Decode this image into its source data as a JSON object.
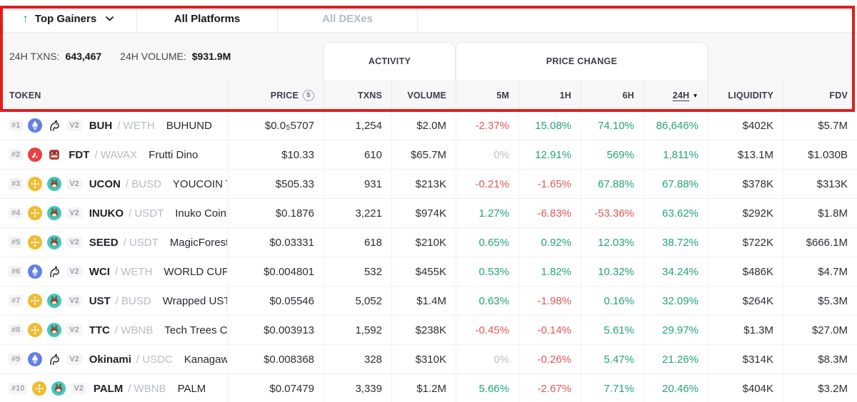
{
  "colors": {
    "annotation_red": "#e01d1d",
    "positive_green": "#25a573",
    "negative_red": "#e45757",
    "neutral_gray": "#b9bfc6",
    "ethereum_blue": "#627eea",
    "bnb_yellow": "#f3ba2f",
    "avalanche_red": "#e84142"
  },
  "filter_bar": {
    "tabs": [
      {
        "label": "Top Gainers",
        "icon": "arrow-up-icon",
        "has_caret": true
      },
      {
        "label": "All Platforms"
      },
      {
        "label": "All DEXes"
      }
    ]
  },
  "stats_bar": {
    "txns_label": "24H TXNS:",
    "txns_value": "643,467",
    "volume_label": "24H VOLUME:",
    "volume_value": "$931.9M",
    "group_headers": {
      "activity": "ACTIVITY",
      "price_change": "PRICE CHANGE"
    }
  },
  "table": {
    "headers": {
      "token": "TOKEN",
      "price": "PRICE",
      "txns": "TXNS",
      "volume": "VOLUME",
      "m5": "5M",
      "h1": "1H",
      "h6": "6H",
      "h24": "24H",
      "liquidity": "LIQUIDITY",
      "fdv": "FDV"
    },
    "sorted_column": "24H",
    "sort_caret": "▼",
    "rows": [
      {
        "rank": "#1",
        "chain_icon": "ethereum-icon",
        "dex_icon": "uniswap-icon",
        "version": "V2",
        "symbol": "BUH",
        "quote": "/ WETH",
        "name": "BUHUND",
        "price": {
          "pre": "$0.0",
          "sub": "5",
          "post": "5707"
        },
        "txns": "1,254",
        "volume": "$2.0M",
        "m5": {
          "value": "-2.37%",
          "dir": "down"
        },
        "h1": {
          "value": "15.08%",
          "dir": "up"
        },
        "h6": {
          "value": "74.10%",
          "dir": "up"
        },
        "h24": {
          "value": "86,646%",
          "dir": "up"
        },
        "liquidity": "$402K",
        "fdv": "$5.7M"
      },
      {
        "rank": "#2",
        "chain_icon": "avalanche-icon",
        "dex_icon": "frutti-dino-icon",
        "version": "",
        "symbol": "FDT",
        "quote": "/ WAVAX",
        "name": "Frutti Dino",
        "price": {
          "pre": "$10.33",
          "sub": "",
          "post": ""
        },
        "txns": "610",
        "volume": "$65.7M",
        "m5": {
          "value": "0%",
          "dir": "flat"
        },
        "h1": {
          "value": "12.91%",
          "dir": "up"
        },
        "h6": {
          "value": "569%",
          "dir": "up"
        },
        "h24": {
          "value": "1,811%",
          "dir": "up"
        },
        "liquidity": "$13.1M",
        "fdv": "$1.030B"
      },
      {
        "rank": "#3",
        "chain_icon": "bnb-icon",
        "dex_icon": "pancakeswap-icon",
        "version": "V2",
        "symbol": "UCON",
        "quote": "/ BUSD",
        "name": "YOUCOIN TOKEN",
        "price": {
          "pre": "$505.33",
          "sub": "",
          "post": ""
        },
        "txns": "931",
        "volume": "$213K",
        "m5": {
          "value": "-0.21%",
          "dir": "down"
        },
        "h1": {
          "value": "-1.65%",
          "dir": "down"
        },
        "h6": {
          "value": "67.88%",
          "dir": "up"
        },
        "h24": {
          "value": "67.88%",
          "dir": "up"
        },
        "liquidity": "$378K",
        "fdv": "$313K"
      },
      {
        "rank": "#4",
        "chain_icon": "bnb-icon",
        "dex_icon": "pancakeswap-icon",
        "version": "V2",
        "symbol": "INUKO",
        "quote": "/ USDT",
        "name": "Inuko Coin",
        "price": {
          "pre": "$0.1876",
          "sub": "",
          "post": ""
        },
        "txns": "3,221",
        "volume": "$974K",
        "m5": {
          "value": "1.27%",
          "dir": "up"
        },
        "h1": {
          "value": "-6.83%",
          "dir": "down"
        },
        "h6": {
          "value": "-53.36%",
          "dir": "down"
        },
        "h24": {
          "value": "63.62%",
          "dir": "up"
        },
        "liquidity": "$292K",
        "fdv": "$1.8M"
      },
      {
        "rank": "#5",
        "chain_icon": "bnb-icon",
        "dex_icon": "pancakeswap-icon",
        "version": "V2",
        "symbol": "SEED",
        "quote": "/ USDT",
        "name": "MagicForestSeed",
        "price": {
          "pre": "$0.03331",
          "sub": "",
          "post": ""
        },
        "txns": "618",
        "volume": "$210K",
        "m5": {
          "value": "0.65%",
          "dir": "up"
        },
        "h1": {
          "value": "0.92%",
          "dir": "up"
        },
        "h6": {
          "value": "12.03%",
          "dir": "up"
        },
        "h24": {
          "value": "38.72%",
          "dir": "up"
        },
        "liquidity": "$722K",
        "fdv": "$666.1M"
      },
      {
        "rank": "#6",
        "chain_icon": "ethereum-icon",
        "dex_icon": "uniswap-icon",
        "version": "V2",
        "symbol": "WCI",
        "quote": "/ WETH",
        "name": "WORLD CUP INU",
        "price": {
          "pre": "$0.004801",
          "sub": "",
          "post": ""
        },
        "txns": "532",
        "volume": "$455K",
        "m5": {
          "value": "0.53%",
          "dir": "up"
        },
        "h1": {
          "value": "1.82%",
          "dir": "up"
        },
        "h6": {
          "value": "10.32%",
          "dir": "up"
        },
        "h24": {
          "value": "34.24%",
          "dir": "up"
        },
        "liquidity": "$486K",
        "fdv": "$4.7M"
      },
      {
        "rank": "#7",
        "chain_icon": "bnb-icon",
        "dex_icon": "pancakeswap-icon",
        "version": "V2",
        "symbol": "UST",
        "quote": "/ BUSD",
        "name": "Wrapped UST Token",
        "price": {
          "pre": "$0.05546",
          "sub": "",
          "post": ""
        },
        "txns": "5,052",
        "volume": "$1.4M",
        "m5": {
          "value": "0.63%",
          "dir": "up"
        },
        "h1": {
          "value": "-1.98%",
          "dir": "down"
        },
        "h6": {
          "value": "0.16%",
          "dir": "up"
        },
        "h24": {
          "value": "32.09%",
          "dir": "up"
        },
        "liquidity": "$264K",
        "fdv": "$5.3M"
      },
      {
        "rank": "#8",
        "chain_icon": "bnb-icon",
        "dex_icon": "pancakeswap-icon",
        "version": "V2",
        "symbol": "TTC",
        "quote": "/ WBNB",
        "name": "Tech Trees Coin",
        "price": {
          "pre": "$0.003913",
          "sub": "",
          "post": ""
        },
        "txns": "1,592",
        "volume": "$238K",
        "m5": {
          "value": "-0.45%",
          "dir": "down"
        },
        "h1": {
          "value": "-0.14%",
          "dir": "down"
        },
        "h6": {
          "value": "5.61%",
          "dir": "up"
        },
        "h24": {
          "value": "29.97%",
          "dir": "up"
        },
        "liquidity": "$1.3M",
        "fdv": "$27.0M"
      },
      {
        "rank": "#9",
        "chain_icon": "ethereum-icon",
        "dex_icon": "uniswap-icon",
        "version": "V2",
        "symbol": "Okinami",
        "quote": "/ USDC",
        "name": "Kanagawa Nami",
        "price": {
          "pre": "$0.008368",
          "sub": "",
          "post": ""
        },
        "txns": "328",
        "volume": "$310K",
        "m5": {
          "value": "0%",
          "dir": "flat"
        },
        "h1": {
          "value": "-0.26%",
          "dir": "down"
        },
        "h6": {
          "value": "5.47%",
          "dir": "up"
        },
        "h24": {
          "value": "21.26%",
          "dir": "up"
        },
        "liquidity": "$314K",
        "fdv": "$8.3M"
      },
      {
        "rank": "#10",
        "chain_icon": "bnb-icon",
        "dex_icon": "pancakeswap-icon",
        "version": "V2",
        "symbol": "PALM",
        "quote": "/ WBNB",
        "name": "PALM",
        "price": {
          "pre": "$0.07479",
          "sub": "",
          "post": ""
        },
        "txns": "3,339",
        "volume": "$1.2M",
        "m5": {
          "value": "5.66%",
          "dir": "up"
        },
        "h1": {
          "value": "-2.67%",
          "dir": "down"
        },
        "h6": {
          "value": "7.71%",
          "dir": "up"
        },
        "h24": {
          "value": "20.46%",
          "dir": "up"
        },
        "liquidity": "$404K",
        "fdv": "$3.2M"
      }
    ]
  }
}
